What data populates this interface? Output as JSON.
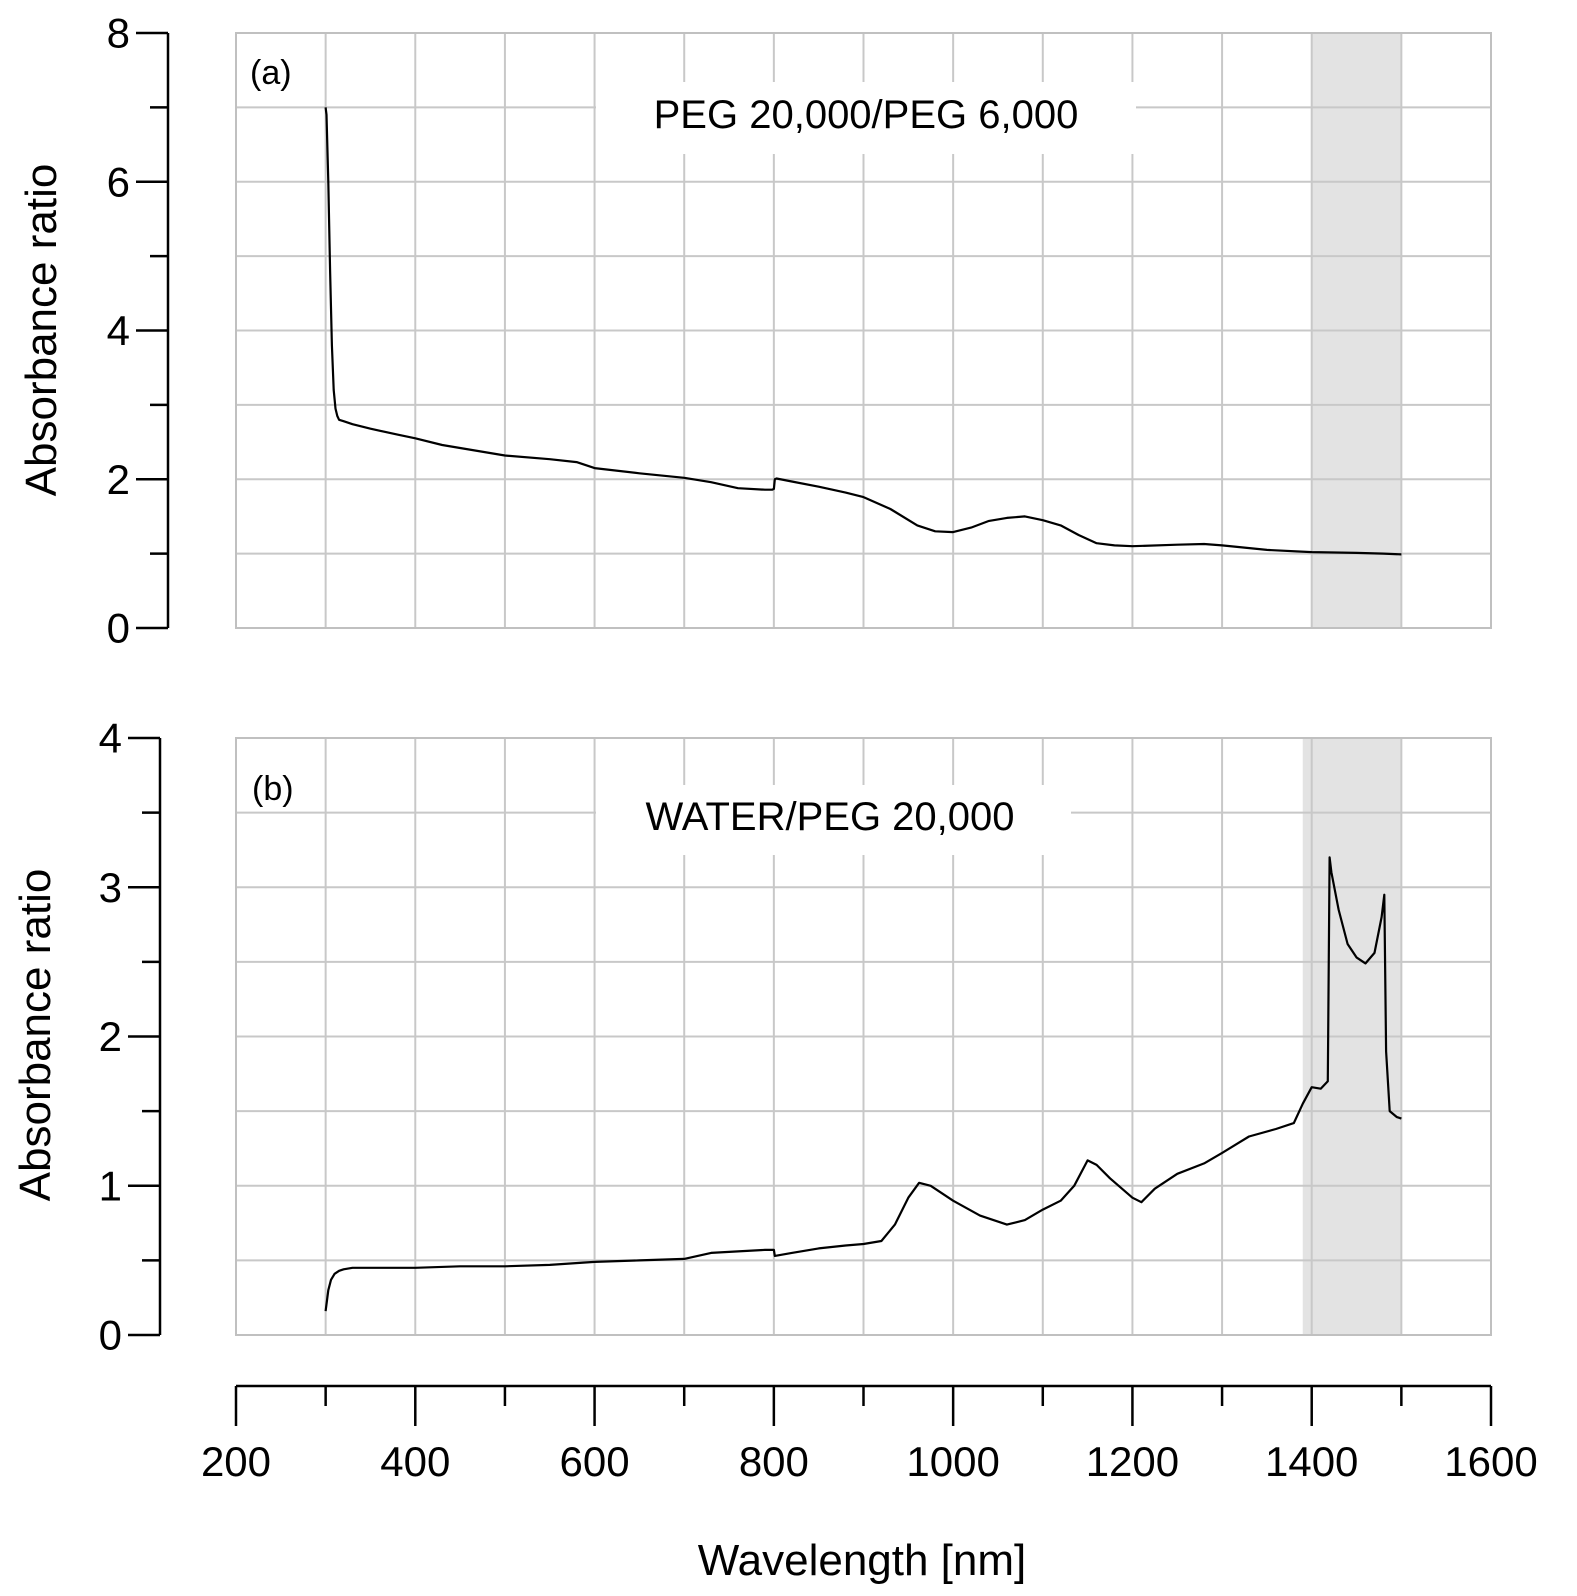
{
  "chart_data": {
    "type": "line",
    "shared_x_axis": {
      "label": "Wavelength [nm]",
      "range": [
        200,
        1600
      ],
      "major_ticks": [
        200,
        400,
        600,
        800,
        1000,
        1200,
        1400,
        1600
      ],
      "tick_labels": [
        "200",
        "400",
        "600",
        "800",
        "1000",
        "1200",
        "1400",
        "1600"
      ],
      "minor_tick_step": 100
    },
    "panels": [
      {
        "id": "a",
        "panel_label": "(a)",
        "title": "PEG 20,000/PEG 6,000",
        "ylabel": "Absorbance ratio",
        "ylim": [
          0,
          8
        ],
        "y_major_ticks": [
          0,
          2,
          4,
          6,
          8
        ],
        "y_tick_labels": [
          "0",
          "2",
          "4",
          "6",
          "8"
        ],
        "y_minor_tick_step": 1,
        "grid": true,
        "grid_x_step": 100,
        "grid_y_step": 1,
        "shaded_region": {
          "x_start": 1400,
          "x_end": 1500,
          "color": "#e3e3e3"
        },
        "series": [
          {
            "name": "PEG 20,000/PEG 6,000",
            "x": [
              300,
              301,
              303,
              305,
              307,
              309,
              311,
              313,
              315,
              320,
              330,
              350,
              380,
              400,
              430,
              470,
              500,
              550,
              580,
              600,
              650,
              700,
              730,
              760,
              790,
              798,
              800,
              801,
              803,
              820,
              850,
              880,
              900,
              930,
              960,
              980,
              1000,
              1020,
              1040,
              1060,
              1080,
              1100,
              1120,
              1140,
              1160,
              1180,
              1200,
              1250,
              1280,
              1300,
              1350,
              1400,
              1450,
              1480,
              1500
            ],
            "y": [
              7.0,
              6.9,
              6.0,
              4.8,
              3.8,
              3.2,
              2.95,
              2.85,
              2.8,
              2.78,
              2.74,
              2.68,
              2.6,
              2.55,
              2.46,
              2.38,
              2.32,
              2.27,
              2.23,
              2.15,
              2.08,
              2.02,
              1.96,
              1.88,
              1.86,
              1.86,
              1.87,
              2.0,
              2.01,
              1.97,
              1.9,
              1.82,
              1.76,
              1.6,
              1.38,
              1.3,
              1.29,
              1.35,
              1.44,
              1.48,
              1.5,
              1.45,
              1.38,
              1.25,
              1.14,
              1.11,
              1.1,
              1.12,
              1.13,
              1.11,
              1.05,
              1.02,
              1.01,
              1.0,
              0.99
            ],
            "color": "#000000"
          }
        ]
      },
      {
        "id": "b",
        "panel_label": "(b)",
        "title": "WATER/PEG 20,000",
        "ylabel": "Absorbance ratio",
        "ylim": [
          0,
          4
        ],
        "y_major_ticks": [
          0,
          1,
          2,
          3,
          4
        ],
        "y_tick_labels": [
          "0",
          "1",
          "2",
          "3",
          "4"
        ],
        "y_minor_tick_step": 0.5,
        "grid": true,
        "grid_x_step": 100,
        "grid_y_step": 0.5,
        "shaded_region": {
          "x_start": 1390,
          "x_end": 1500,
          "color": "#e3e3e3"
        },
        "series": [
          {
            "name": "WATER/PEG 20,000",
            "x": [
              300,
              303,
              306,
              310,
              315,
              320,
              330,
              350,
              400,
              450,
              500,
              550,
              600,
              650,
              700,
              730,
              760,
              790,
              800,
              801,
              820,
              850,
              880,
              900,
              920,
              935,
              950,
              962,
              975,
              1000,
              1030,
              1060,
              1080,
              1100,
              1120,
              1135,
              1150,
              1160,
              1175,
              1200,
              1210,
              1225,
              1250,
              1280,
              1300,
              1330,
              1360,
              1380,
              1390,
              1400,
              1410,
              1418,
              1420,
              1422,
              1430,
              1440,
              1450,
              1460,
              1470,
              1478,
              1481,
              1483,
              1487,
              1495,
              1500
            ],
            "y": [
              0.16,
              0.3,
              0.37,
              0.41,
              0.43,
              0.44,
              0.45,
              0.45,
              0.45,
              0.46,
              0.46,
              0.47,
              0.49,
              0.5,
              0.51,
              0.55,
              0.56,
              0.57,
              0.57,
              0.53,
              0.55,
              0.58,
              0.6,
              0.61,
              0.63,
              0.74,
              0.92,
              1.02,
              1.0,
              0.9,
              0.8,
              0.74,
              0.77,
              0.84,
              0.9,
              1.0,
              1.17,
              1.14,
              1.05,
              0.92,
              0.89,
              0.98,
              1.08,
              1.15,
              1.22,
              1.33,
              1.38,
              1.42,
              1.55,
              1.66,
              1.65,
              1.7,
              3.2,
              3.1,
              2.85,
              2.62,
              2.53,
              2.49,
              2.56,
              2.8,
              2.95,
              1.9,
              1.5,
              1.46,
              1.45
            ],
            "color": "#000000"
          }
        ]
      }
    ]
  }
}
